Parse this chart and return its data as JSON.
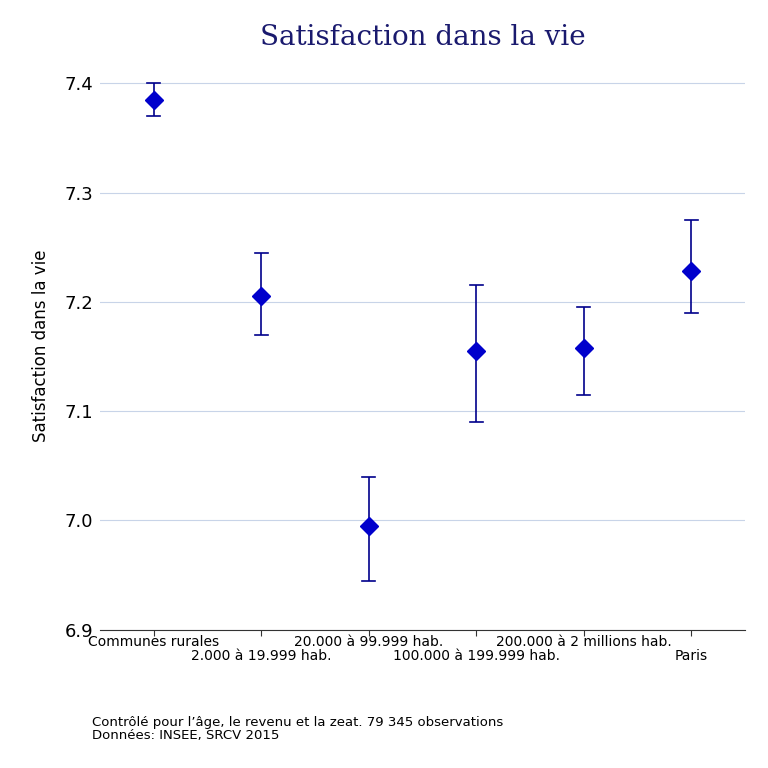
{
  "title": "Satisfaction dans la vie",
  "ylabel": "Satisfaction dans la vie",
  "x_positions": [
    1,
    2,
    3,
    4,
    5,
    6
  ],
  "y_values": [
    7.385,
    7.205,
    6.995,
    7.155,
    7.158,
    7.228
  ],
  "y_lower": [
    7.37,
    7.17,
    6.945,
    7.09,
    7.115,
    7.19
  ],
  "y_upper": [
    7.4,
    7.245,
    7.04,
    7.215,
    7.195,
    7.275
  ],
  "ylim": [
    6.9,
    7.42
  ],
  "yticks": [
    6.9,
    7.0,
    7.1,
    7.2,
    7.3,
    7.4
  ],
  "marker_color": "#0000CC",
  "line_color": "#00008B",
  "title_color": "#1a1a6e",
  "marker_size": 9,
  "background_color": "#ffffff",
  "grid_color": "#c8d4e8",
  "footnote_line1": "Contrôlé pour l’âge, le revenu et la zeat. 79 345 observations",
  "footnote_line2": "Données: INSEE, SRCV 2015",
  "label_top": [
    "Communes rurales",
    "",
    "20.000 à 99.999 hab.",
    "",
    "200.000 à 2 millions hab.",
    ""
  ],
  "label_bottom": [
    "",
    "2.000 à 19.999 hab.",
    "",
    "100.000 à 199.999 hab.",
    "",
    "Paris"
  ]
}
